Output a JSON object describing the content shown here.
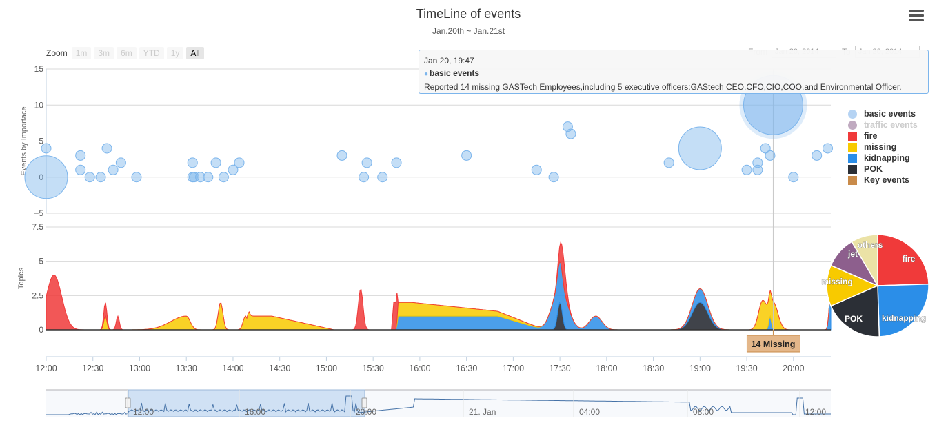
{
  "title": "TimeLine of events",
  "subtitle": "Jan.20th ~ Jan.21st",
  "zoom": {
    "label": "Zoom",
    "buttons": [
      "1m",
      "3m",
      "6m",
      "YTD",
      "1y",
      "All"
    ],
    "active": "All"
  },
  "range": {
    "from_label": "From",
    "from_value": "Jan 20, 2014",
    "to_label": "To",
    "to_value": "Jan 20, 2014"
  },
  "tooltip": {
    "time": "Jan 20, 19:47",
    "series": "basic events",
    "text": "Reported 14 missing GASTech Employees,including 5 executive officers:GAStech CEO,CFO,CIO,COO,and Environmental Officer."
  },
  "legend": [
    {
      "name": "basic events",
      "color": "#b5d3f3",
      "shape": "circle",
      "visible": true
    },
    {
      "name": "traffic events",
      "color": "#c0aac0",
      "shape": "circle",
      "visible": false
    },
    {
      "name": "fire",
      "color": "#f03a3a",
      "shape": "square",
      "visible": true
    },
    {
      "name": "missing",
      "color": "#f8ca00",
      "shape": "square",
      "visible": true
    },
    {
      "name": "kidnapping",
      "color": "#2b8ee8",
      "shape": "square",
      "visible": true
    },
    {
      "name": "POK",
      "color": "#2b2f36",
      "shape": "square",
      "visible": true
    },
    {
      "name": "Key events",
      "color": "#c98b4a",
      "shape": "square",
      "visible": true
    }
  ],
  "flag": {
    "label": "14 Missing",
    "time": "19:47"
  },
  "chart_data": [
    {
      "type": "scatter",
      "subtype": "bubble",
      "ylabel": "Events by Importace",
      "ylim": [
        -5,
        15
      ],
      "yticks": [
        15,
        10,
        5,
        0,
        -5
      ],
      "xlim": [
        "12:00",
        "20:24"
      ],
      "xticks": [
        "12:00",
        "12:30",
        "13:00",
        "13:30",
        "14:00",
        "14:30",
        "15:00",
        "15:30",
        "16:00",
        "16:30",
        "17:00",
        "17:30",
        "18:00",
        "18:30",
        "19:00",
        "19:30",
        "20:00"
      ],
      "series": [
        {
          "name": "basic events",
          "points": [
            {
              "x": "12:00",
              "y": 4,
              "z": 1
            },
            {
              "x": "12:00",
              "y": 0,
              "z": 5
            },
            {
              "x": "12:22",
              "y": 3,
              "z": 1
            },
            {
              "x": "12:22",
              "y": 1,
              "z": 1
            },
            {
              "x": "12:28",
              "y": 0,
              "z": 1
            },
            {
              "x": "12:35",
              "y": 0,
              "z": 1
            },
            {
              "x": "12:39",
              "y": 4,
              "z": 1
            },
            {
              "x": "12:43",
              "y": 1,
              "z": 1
            },
            {
              "x": "12:48",
              "y": 2,
              "z": 1
            },
            {
              "x": "12:58",
              "y": 0,
              "z": 1
            },
            {
              "x": "13:34",
              "y": 2,
              "z": 1
            },
            {
              "x": "13:34",
              "y": 0,
              "z": 1
            },
            {
              "x": "13:35",
              "y": 0,
              "z": 1
            },
            {
              "x": "13:39",
              "y": 0,
              "z": 1
            },
            {
              "x": "13:44",
              "y": 0,
              "z": 1
            },
            {
              "x": "13:49",
              "y": 2,
              "z": 1
            },
            {
              "x": "13:54",
              "y": 0,
              "z": 1
            },
            {
              "x": "14:00",
              "y": 1,
              "z": 1
            },
            {
              "x": "14:04",
              "y": 2,
              "z": 1
            },
            {
              "x": "15:10",
              "y": 3,
              "z": 1
            },
            {
              "x": "15:24",
              "y": 0,
              "z": 1
            },
            {
              "x": "15:26",
              "y": 2,
              "z": 1
            },
            {
              "x": "15:36",
              "y": 0,
              "z": 1
            },
            {
              "x": "15:45",
              "y": 2,
              "z": 1
            },
            {
              "x": "16:30",
              "y": 3,
              "z": 1
            },
            {
              "x": "17:15",
              "y": 1,
              "z": 1
            },
            {
              "x": "17:26",
              "y": 0,
              "z": 1
            },
            {
              "x": "17:35",
              "y": 7,
              "z": 1
            },
            {
              "x": "17:37",
              "y": 6,
              "z": 1
            },
            {
              "x": "18:40",
              "y": 2,
              "z": 1
            },
            {
              "x": "19:00",
              "y": 4,
              "z": 5
            },
            {
              "x": "19:30",
              "y": 1,
              "z": 1
            },
            {
              "x": "19:37",
              "y": 1,
              "z": 1
            },
            {
              "x": "19:37",
              "y": 2,
              "z": 1
            },
            {
              "x": "19:42",
              "y": 4,
              "z": 1
            },
            {
              "x": "19:45",
              "y": 3,
              "z": 1
            },
            {
              "x": "19:47",
              "y": 10,
              "z": 7
            },
            {
              "x": "20:00",
              "y": 0,
              "z": 1
            },
            {
              "x": "20:15",
              "y": 3,
              "z": 1
            },
            {
              "x": "20:22",
              "y": 4,
              "z": 1
            }
          ]
        }
      ]
    },
    {
      "type": "area",
      "stacked": true,
      "ylabel": "Topics",
      "ylim": [
        0,
        7.5
      ],
      "yticks": [
        7.5,
        5,
        2.5,
        0
      ],
      "xlim": [
        "12:00",
        "20:24"
      ],
      "series": [
        {
          "name": "POK",
          "peaks": [
            {
              "x": "17:30",
              "h": 2,
              "w": 1.5
            },
            {
              "x": "19:00",
              "h": 2,
              "w": 5
            }
          ]
        },
        {
          "name": "kidnapping",
          "peaks": [
            {
              "x": "17:30",
              "h": 3,
              "w": 5
            },
            {
              "x": "17:53",
              "h": 1,
              "w": 4
            },
            {
              "x": "19:00",
              "h": 1,
              "w": 5
            },
            {
              "x": "19:45",
              "h": 1,
              "w": 0.8
            },
            {
              "x": "20:24",
              "h": 3,
              "w": 1
            }
          ],
          "plateaus": [
            {
              "from": "15:46",
              "to": "16:50",
              "h": 1,
              "fade_to": "17:20"
            }
          ]
        },
        {
          "name": "missing",
          "peaks": [
            {
              "x": "12:38",
              "h": 1,
              "w": 1
            },
            {
              "x": "13:30",
              "h": 1,
              "w": 10,
              "skew": true
            },
            {
              "x": "13:52",
              "h": 2,
              "w": 1.5
            },
            {
              "x": "14:08",
              "h": 1,
              "w": 1.5
            },
            {
              "x": "17:31",
              "h": 0,
              "w": 4
            },
            {
              "x": "19:40",
              "h": 2,
              "w": 2.5
            },
            {
              "x": "19:47",
              "h": 2,
              "w": 3
            }
          ],
          "plateaus": [
            {
              "from": "14:10",
              "to": "14:25",
              "h": 1,
              "fade_to": "15:05"
            },
            {
              "from": "15:46",
              "to": "15:55",
              "h": 1,
              "fade_to": "17:20"
            }
          ]
        },
        {
          "name": "fire",
          "peaks": [
            {
              "x": "12:05",
              "h": 4,
              "w": 5
            },
            {
              "x": "12:38",
              "h": 1,
              "w": 1
            },
            {
              "x": "12:46",
              "h": 1,
              "w": 1
            },
            {
              "x": "13:30",
              "h": 0,
              "w": 10
            },
            {
              "x": "15:22",
              "h": 3,
              "w": 1.5
            },
            {
              "x": "17:32",
              "h": 2,
              "w": 2
            }
          ],
          "plateaus": [
            {
              "from": "15:43",
              "to": "15:46",
              "h": 2,
              "fade_to": "15:46"
            }
          ]
        }
      ]
    },
    {
      "type": "area",
      "role": "navigator",
      "xticks": [
        "12:00",
        "16:00",
        "20:00",
        "21. Jan",
        "04:00",
        "08:00",
        "12:00"
      ],
      "selection": [
        "11:10",
        "20:03"
      ]
    },
    {
      "type": "pie",
      "slices": [
        {
          "name": "fire",
          "value": 24.5,
          "color": "#f03a3a"
        },
        {
          "name": "kidnapping",
          "value": 25,
          "color": "#2b8ee8"
        },
        {
          "name": "POK",
          "value": 19,
          "color": "#2b2f36"
        },
        {
          "name": "missing",
          "value": 13,
          "color": "#f8ca00"
        },
        {
          "name": "jet",
          "value": 10,
          "color": "#8d5f8d"
        },
        {
          "name": "others",
          "value": 8.5,
          "color": "#ebe2a6"
        }
      ]
    }
  ]
}
